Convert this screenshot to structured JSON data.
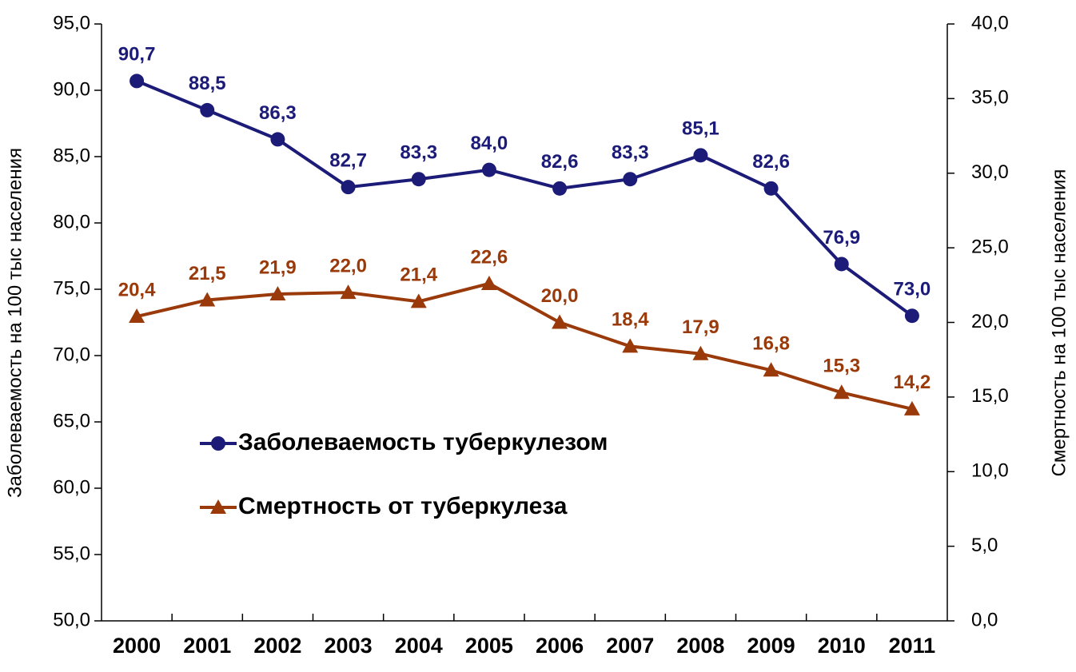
{
  "chart_data": {
    "type": "line",
    "y_label": "Заболеваемость на 100 тыс населения",
    "y2_label": "Смертность на 100 тыс населения",
    "categories": [
      "2000",
      "2001",
      "2002",
      "2003",
      "2004",
      "2005",
      "2006",
      "2007",
      "2008",
      "2009",
      "2010",
      "2011"
    ],
    "series": [
      {
        "name": "Заболеваемость туберкулезом",
        "color": "#1c1c78",
        "marker": "circle",
        "values": [
          90.7,
          88.5,
          86.3,
          82.7,
          83.3,
          84.0,
          82.6,
          83.3,
          85.1,
          82.6,
          76.9,
          73.0
        ],
        "value_labels": [
          "90,7",
          "88,5",
          "86,3",
          "82,7",
          "83,3",
          "84,0",
          "82,6",
          "83,3",
          "85,1",
          "82,6",
          "76,9",
          "73,0"
        ]
      },
      {
        "name": "Смертность от туберкулеза",
        "color": "#9a3a0a",
        "marker": "triangle",
        "axis": "y2",
        "values": [
          20.4,
          21.5,
          21.9,
          22.0,
          21.4,
          22.6,
          20.0,
          18.4,
          17.9,
          16.8,
          15.3,
          14.2
        ],
        "value_labels": [
          "20,4",
          "21,5",
          "21,9",
          "22,0",
          "21,4",
          "22,6",
          "20,0",
          "18,4",
          "17,9",
          "16,8",
          "15,3",
          "14,2"
        ]
      }
    ],
    "ylim": [
      50,
      95
    ],
    "yticks": [
      {
        "value": 50,
        "label": "50,0"
      },
      {
        "value": 55,
        "label": "55,0"
      },
      {
        "value": 60,
        "label": "60,0"
      },
      {
        "value": 65,
        "label": "65,0"
      },
      {
        "value": 70,
        "label": "70,0"
      },
      {
        "value": 75,
        "label": "75,0"
      },
      {
        "value": 80,
        "label": "80,0"
      },
      {
        "value": 85,
        "label": "85,0"
      },
      {
        "value": 90,
        "label": "90,0"
      },
      {
        "value": 95,
        "label": "95,0"
      }
    ],
    "y2lim": [
      0,
      40
    ],
    "y2ticks": [
      {
        "value": 0,
        "label": "0,0"
      },
      {
        "value": 5,
        "label": "5,0"
      },
      {
        "value": 10,
        "label": "10,0"
      },
      {
        "value": 15,
        "label": "15,0"
      },
      {
        "value": 20,
        "label": "20,0"
      },
      {
        "value": 25,
        "label": "25,0"
      },
      {
        "value": 30,
        "label": "30,0"
      },
      {
        "value": 35,
        "label": "35,0"
      },
      {
        "value": 40,
        "label": "40,0"
      }
    ],
    "legend": "inside-left"
  }
}
